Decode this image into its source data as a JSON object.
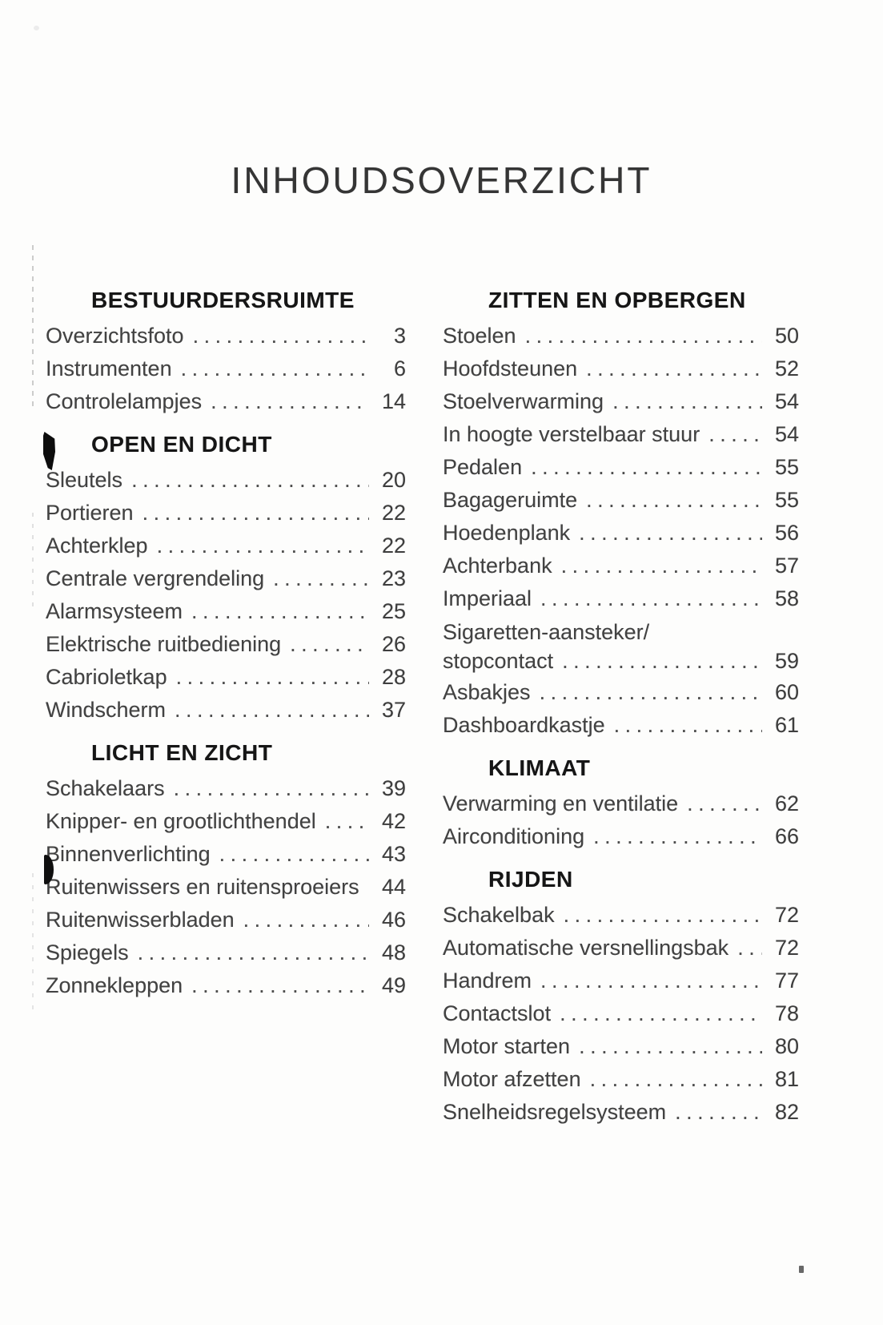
{
  "page_title": "INHOUDSOVERZICHT",
  "toc": {
    "columns": [
      {
        "sections": [
          {
            "heading": "BESTUURDERSRUIMTE",
            "items": [
              {
                "label": "Overzichtsfoto",
                "page": "3"
              },
              {
                "label": "Instrumenten",
                "page": "6"
              },
              {
                "label": "Controlelampjes",
                "page": "14"
              }
            ]
          },
          {
            "heading": "OPEN EN DICHT",
            "items": [
              {
                "label": "Sleutels",
                "page": "20"
              },
              {
                "label": "Portieren",
                "page": "22"
              },
              {
                "label": "Achterklep",
                "page": "22"
              },
              {
                "label": "Centrale vergrendeling",
                "page": "23"
              },
              {
                "label": "Alarmsysteem",
                "page": "25"
              },
              {
                "label": "Elektrische ruitbediening",
                "page": "26"
              },
              {
                "label": "Cabrioletkap",
                "page": "28"
              },
              {
                "label": "Windscherm",
                "page": "37"
              }
            ]
          },
          {
            "heading": "LICHT EN ZICHT",
            "items": [
              {
                "label": "Schakelaars",
                "page": "39"
              },
              {
                "label": "Knipper- en grootlichthendel",
                "page": "42"
              },
              {
                "label": "Binnenverlichting",
                "page": "43"
              },
              {
                "label": "Ruitenwissers en ruitensproeiers",
                "page": "44"
              },
              {
                "label": "Ruitenwisserbladen",
                "page": "46"
              },
              {
                "label": "Spiegels",
                "page": "48"
              },
              {
                "label": "Zonnekleppen",
                "page": "49"
              }
            ]
          }
        ]
      },
      {
        "sections": [
          {
            "heading": "ZITTEN EN OPBERGEN",
            "items": [
              {
                "label": "Stoelen",
                "page": "50"
              },
              {
                "label": "Hoofdsteunen",
                "page": "52"
              },
              {
                "label": "Stoelverwarming",
                "page": "54"
              },
              {
                "label": "In hoogte verstelbaar stuur",
                "page": "54"
              },
              {
                "label": "Pedalen",
                "page": "55"
              },
              {
                "label": "Bagageruimte",
                "page": "55"
              },
              {
                "label": "Hoedenplank",
                "page": "56"
              },
              {
                "label": "Achterbank",
                "page": "57"
              },
              {
                "label": "Imperiaal",
                "page": "58"
              },
              {
                "label": "Sigaretten-aansteker/",
                "label_line2": "stopcontact",
                "page": "59"
              },
              {
                "label": "Asbakjes",
                "page": "60"
              },
              {
                "label": "Dashboardkastje",
                "page": "61"
              }
            ]
          },
          {
            "heading": "KLIMAAT",
            "items": [
              {
                "label": "Verwarming en ventilatie",
                "page": "62"
              },
              {
                "label": "Airconditioning",
                "page": "66"
              }
            ]
          },
          {
            "heading": "RIJDEN",
            "items": [
              {
                "label": "Schakelbak",
                "page": "72"
              },
              {
                "label": "Automatische versnellingsbak",
                "page": "72"
              },
              {
                "label": "Handrem",
                "page": "77"
              },
              {
                "label": "Contactslot",
                "page": "78"
              },
              {
                "label": "Motor starten",
                "page": "80"
              },
              {
                "label": "Motor afzetten",
                "page": "81"
              },
              {
                "label": "Snelheidsregelsysteem",
                "page": "82"
              }
            ]
          }
        ]
      }
    ]
  }
}
